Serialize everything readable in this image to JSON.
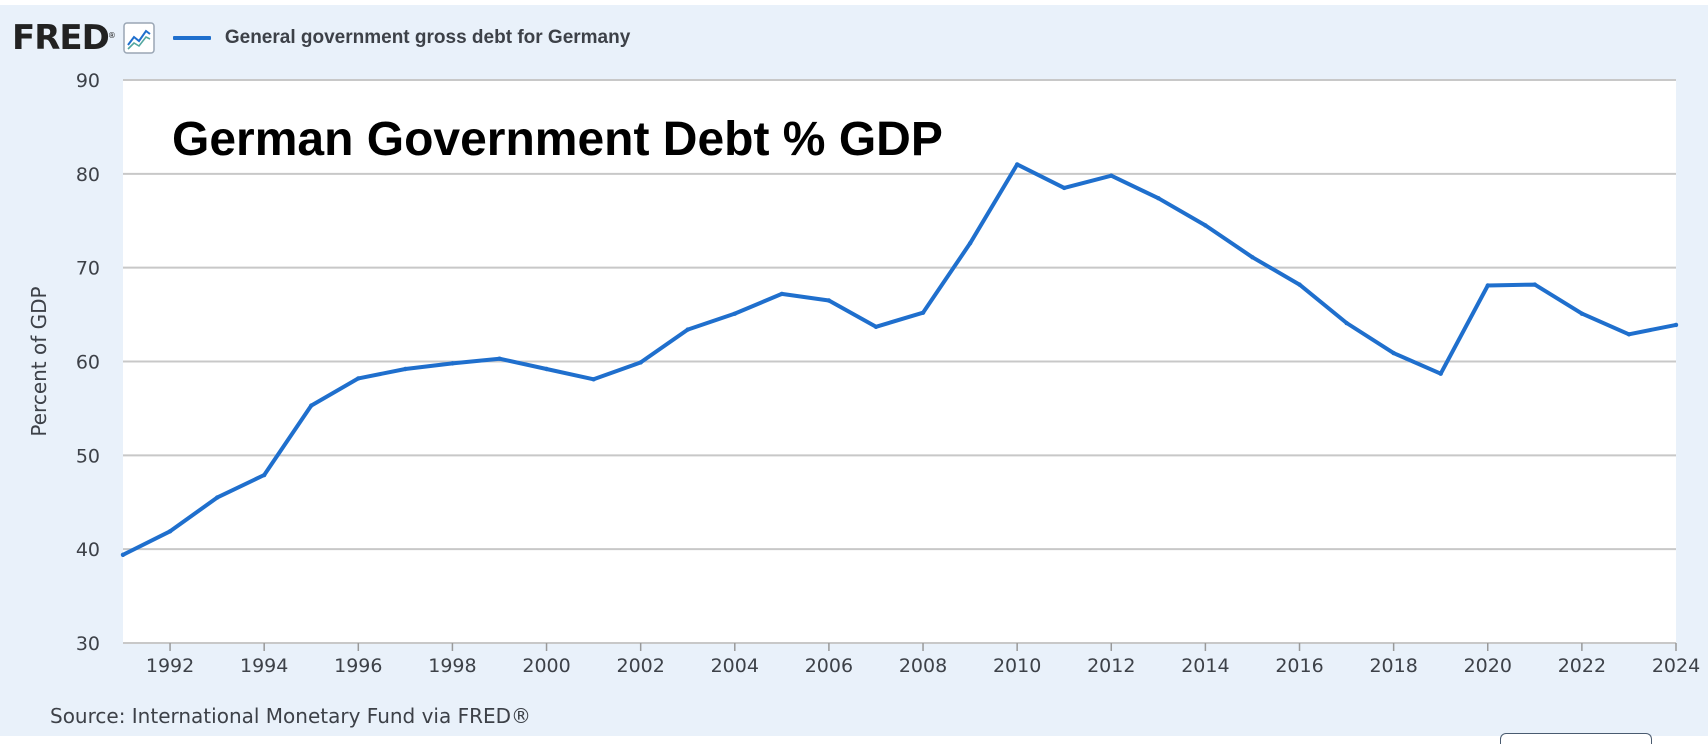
{
  "header": {
    "logo_text": "FRED",
    "logo_reg": "®",
    "icon": "trend-chart-icon",
    "legend_label": "General government gross debt for Germany"
  },
  "colors": {
    "series": "#1f6fcd",
    "background": "#e9f1fa",
    "plot_background": "#ffffff",
    "gridline": "#c8c8c8"
  },
  "source": "Source: International Monetary Fund via FRED®",
  "chart_data": {
    "type": "line",
    "annotation": "German Government Debt % GDP",
    "ylabel": "Percent of GDP",
    "xlabel": "",
    "ylim": [
      30,
      90
    ],
    "yticks": [
      30,
      40,
      50,
      60,
      70,
      80,
      90
    ],
    "xlim": [
      1991,
      2024
    ],
    "xticks": [
      1992,
      1994,
      1996,
      1998,
      2000,
      2002,
      2004,
      2006,
      2008,
      2010,
      2012,
      2014,
      2016,
      2018,
      2020,
      2022,
      2024
    ],
    "grid": true,
    "legend": "top-left",
    "series": [
      {
        "name": "General government gross debt for Germany",
        "x": [
          1991,
          1992,
          1993,
          1994,
          1995,
          1996,
          1997,
          1998,
          1999,
          2000,
          2001,
          2002,
          2003,
          2004,
          2005,
          2006,
          2007,
          2008,
          2009,
          2010,
          2011,
          2012,
          2013,
          2014,
          2015,
          2016,
          2017,
          2018,
          2019,
          2020,
          2021,
          2022,
          2023,
          2024
        ],
        "values": [
          39.4,
          41.9,
          45.5,
          47.9,
          55.3,
          58.2,
          59.2,
          59.8,
          60.3,
          59.2,
          58.1,
          59.9,
          63.4,
          65.1,
          67.2,
          66.5,
          63.7,
          65.2,
          72.6,
          81.0,
          78.5,
          79.8,
          77.4,
          74.5,
          71.1,
          68.2,
          64.1,
          60.9,
          58.7,
          68.1,
          68.2,
          65.1,
          62.9,
          63.9
        ]
      }
    ]
  }
}
